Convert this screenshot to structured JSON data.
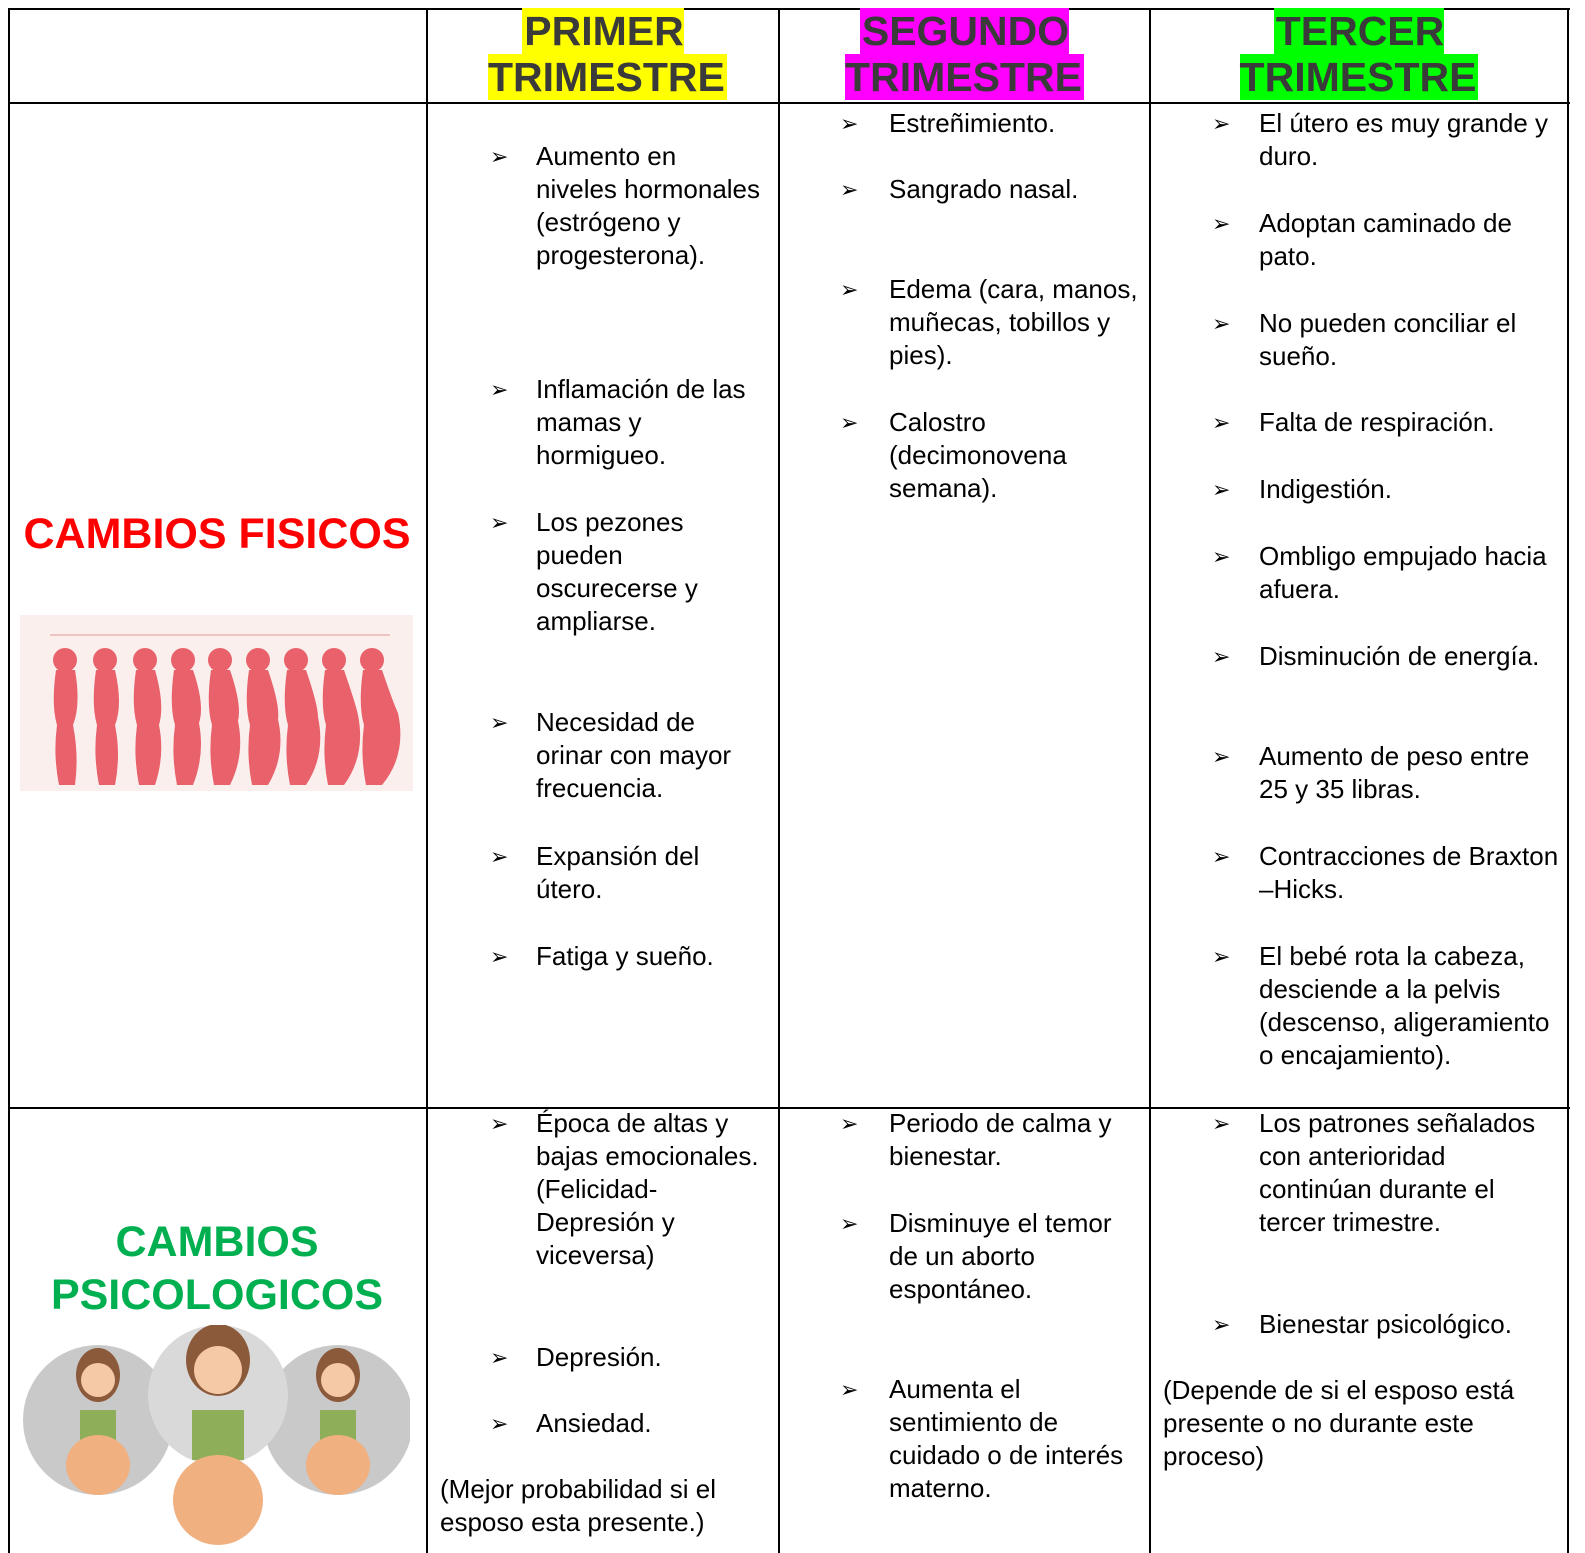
{
  "table": {
    "header": [
      "PRIMER TRIMESTRE",
      "SEGUNDO TRIMESTRE",
      "TERCER TRIMESTRE"
    ],
    "rows": [
      {
        "label": "CAMBIOS FISICOS",
        "cells": [
          {
            "items": [
              "Aumento en niveles hormonales (estrógeno y progesterona).",
              "Inflamación de las mamas y hormigueo.",
              "Los pezones pueden oscurecerse y ampliarse.",
              "Necesidad de orinar con mayor frecuencia.",
              "Expansión del útero.",
              "Fatiga y sueño."
            ]
          },
          {
            "items": [
              "Estreñimiento.",
              "Sangrado nasal.",
              "Edema (cara, manos, muñecas, tobillos y pies).",
              "Calostro (decimonovena semana)."
            ]
          },
          {
            "items": [
              "El útero es muy grande y duro.",
              "Adoptan caminado de pato.",
              "No pueden conciliar el sueño.",
              "Falta de respiración.",
              "Indigestión.",
              "Ombligo empujado hacia afuera.",
              "Disminución de energía.",
              "Aumento de peso entre 25 y 35 libras.",
              "Contracciones de Braxton –Hicks.",
              "El bebé rota la cabeza, desciende a la pelvis (descenso, aligeramiento o encajamiento)."
            ]
          }
        ]
      },
      {
        "label": "CAMBIOS PSICOLOGICOS",
        "cells": [
          {
            "items": [
              "Época de altas y bajas emocionales. (Felicidad-Depresión y viceversa)",
              "Depresión.",
              "Ansiedad."
            ],
            "note": "(Mejor probabilidad si el esposo esta presente.)"
          },
          {
            "items": [
              "Periodo de calma y bienestar.",
              "Disminuye el temor de un aborto espontáneo.",
              "Aumenta el sentimiento de cuidado o de interés materno."
            ]
          },
          {
            "items": [
              "Los patrones señalados con anterioridad continúan durante el tercer trimestre.",
              "Bienestar psicológico."
            ],
            "note": "(Depende de si el esposo está presente o no durante este proceso)"
          }
        ]
      }
    ]
  }
}
